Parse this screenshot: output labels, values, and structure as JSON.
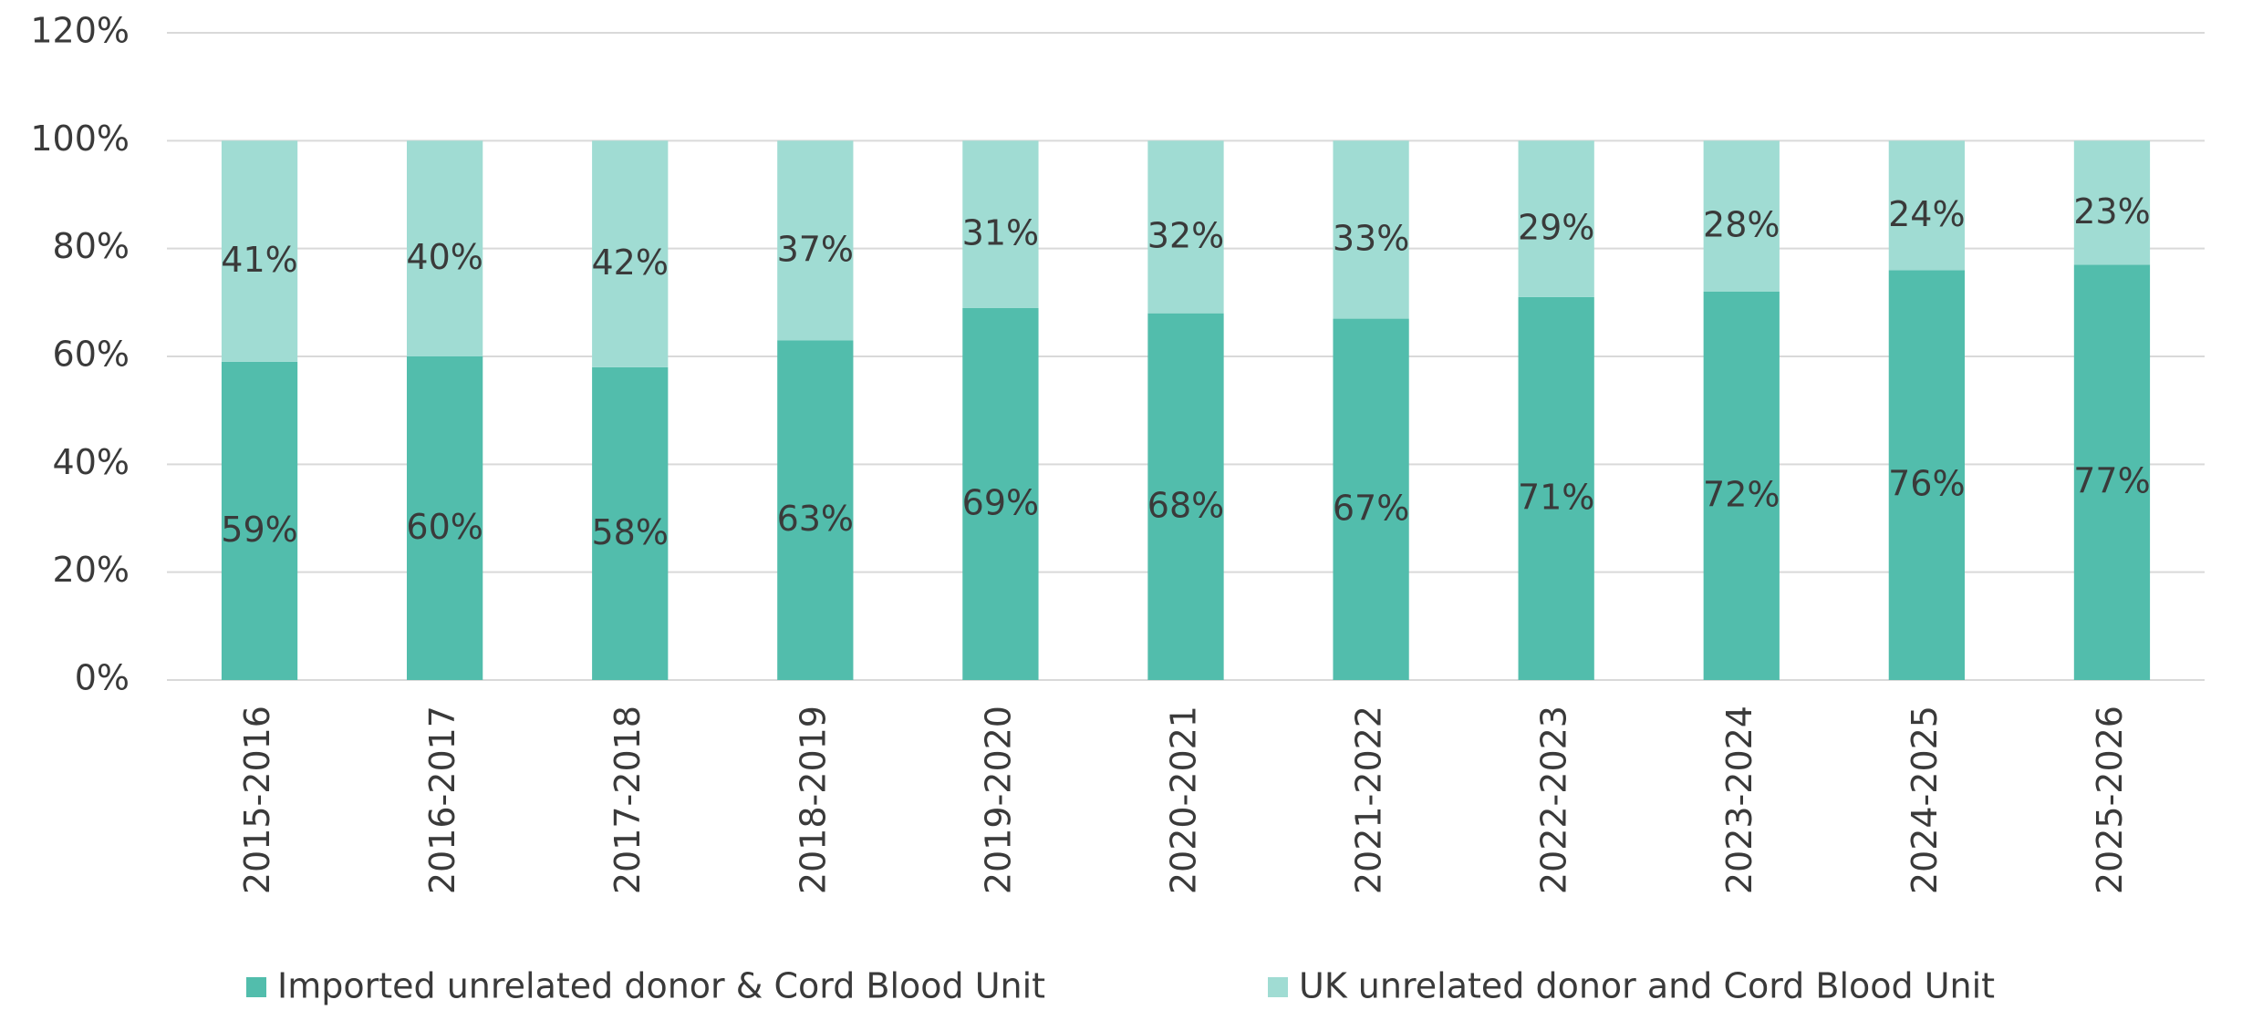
{
  "chart_data": {
    "type": "stacked_bar",
    "categories": [
      "2015-2016",
      "2016-2017",
      "2017-2018",
      "2018-2019",
      "2019-2020",
      "2020-2021",
      "2021-2022",
      "2022-2023",
      "2023-2024",
      "2024-2025",
      "2025-2026"
    ],
    "series": [
      {
        "name": "Imported unrelated donor & Cord Blood Unit",
        "color": "#52bdac",
        "values": [
          59,
          60,
          58,
          63,
          69,
          68,
          67,
          71,
          72,
          76,
          77
        ],
        "value_labels": [
          "59%",
          "60%",
          "58%",
          "63%",
          "69%",
          "68%",
          "67%",
          "71%",
          "72%",
          "76%",
          "77%"
        ]
      },
      {
        "name": "UK unrelated donor and Cord Blood Unit",
        "color": "#a0dcd3",
        "values": [
          41,
          40,
          42,
          37,
          31,
          32,
          33,
          29,
          28,
          24,
          23
        ],
        "value_labels": [
          "41%",
          "40%",
          "42%",
          "37%",
          "31%",
          "32%",
          "33%",
          "29%",
          "28%",
          "24%",
          "23%"
        ]
      }
    ],
    "ylim": [
      0,
      120
    ],
    "yticks": [
      {
        "value": 0,
        "label": "0%"
      },
      {
        "value": 20,
        "label": "20%"
      },
      {
        "value": 40,
        "label": "40%"
      },
      {
        "value": 60,
        "label": "60%"
      },
      {
        "value": 80,
        "label": "80%"
      },
      {
        "value": 100,
        "label": "100%"
      },
      {
        "value": 120,
        "label": "120%"
      }
    ],
    "grid": true,
    "legend": "bottom"
  }
}
